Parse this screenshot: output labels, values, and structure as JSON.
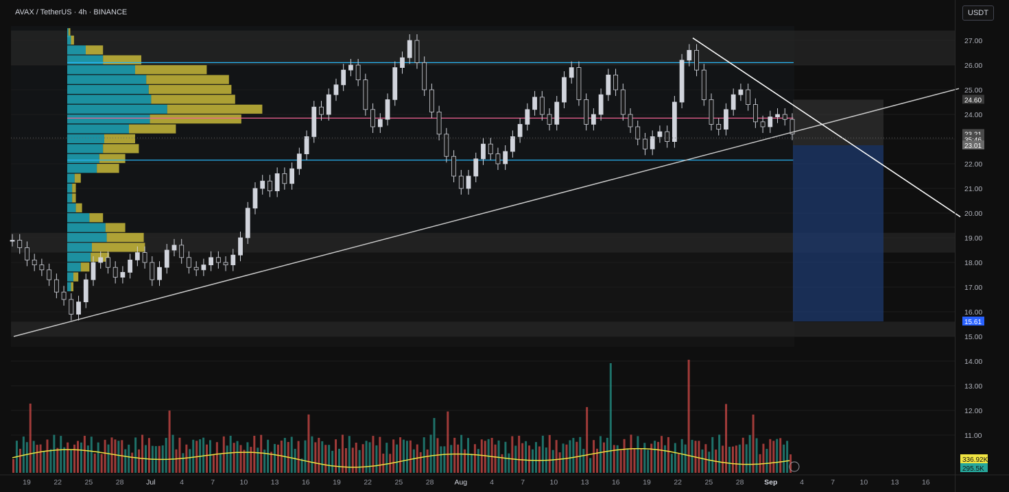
{
  "header": {
    "symbol_title": "AVAX / TetherUS · 4h · BINANCE",
    "currency_button": "USDT"
  },
  "chart_data": {
    "type": "candlestick",
    "symbol": "AVAX / TetherUS",
    "interval": "4h",
    "exchange": "BINANCE",
    "price_axis_ticks": [
      "27.00",
      "26.00",
      "25.00",
      "24.00",
      "23.00",
      "22.00",
      "21.00",
      "20.00",
      "19.00",
      "18.00",
      "17.00",
      "16.00",
      "15.00",
      "14.00",
      "13.00",
      "12.00",
      "11.00"
    ],
    "time_axis_ticks": [
      "19",
      "22",
      "25",
      "28",
      "Jul",
      "4",
      "7",
      "10",
      "13",
      "16",
      "19",
      "22",
      "25",
      "28",
      "Aug",
      "4",
      "7",
      "10",
      "13",
      "16",
      "19",
      "22",
      "25",
      "28",
      "Sep",
      "4",
      "7",
      "10",
      "13",
      "16"
    ],
    "price_labels": [
      {
        "text": "24.60",
        "price": 24.6,
        "color": "#3a3a3a"
      },
      {
        "text": "23.21",
        "price": 23.21,
        "color": "#4a4a4a"
      },
      {
        "text": "35:46",
        "price": 22.98,
        "color": "#4a4a4a"
      },
      {
        "text": "23.01",
        "price": 22.75,
        "color": "#6a6a6a"
      },
      {
        "text": "15.61",
        "price": 15.61,
        "color": "#2962ff"
      }
    ],
    "volume_labels": [
      {
        "text": "336.92K",
        "color": "#f0e442"
      },
      {
        "text": "295.5K",
        "color": "#26a69a"
      }
    ],
    "horizontal_levels": [
      {
        "price": 26.1,
        "color": "#29b6f6"
      },
      {
        "price": 23.85,
        "color": "#f06292"
      },
      {
        "price": 22.15,
        "color": "#29b6f6"
      }
    ],
    "zones": [
      {
        "from": 26.0,
        "to": 27.4
      },
      {
        "from": 18.4,
        "to": 19.2
      },
      {
        "from": 15.0,
        "to": 15.6
      }
    ],
    "close_series": [
      18.9,
      18.6,
      18.1,
      17.9,
      17.7,
      17.3,
      16.8,
      16.5,
      15.9,
      16.4,
      17.3,
      18.0,
      18.2,
      17.8,
      17.4,
      17.6,
      18.1,
      18.4,
      18.0,
      17.3,
      17.8,
      18.5,
      18.7,
      18.2,
      17.8,
      17.7,
      17.9,
      18.2,
      18.0,
      17.9,
      18.3,
      19.0,
      20.2,
      21.0,
      21.3,
      20.9,
      21.6,
      21.2,
      21.8,
      22.4,
      23.1,
      24.3,
      24.0,
      24.8,
      25.2,
      25.8,
      26.0,
      25.4,
      24.2,
      23.5,
      23.8,
      24.6,
      25.9,
      26.3,
      27.0,
      26.1,
      25.0,
      24.1,
      23.2,
      22.3,
      21.5,
      21.0,
      21.5,
      22.2,
      22.8,
      22.4,
      22.0,
      22.5,
      23.1,
      23.6,
      24.2,
      24.7,
      24.0,
      23.6,
      24.5,
      25.5,
      25.9,
      24.6,
      23.6,
      24.0,
      24.8,
      25.6,
      25.0,
      24.0,
      23.5,
      23.0,
      22.6,
      23.1,
      23.3,
      22.9,
      24.5,
      26.2,
      26.6,
      25.8,
      24.6,
      23.6,
      23.4,
      24.2,
      24.8,
      25.0,
      24.4,
      23.7,
      23.5,
      23.9,
      24.0,
      23.8,
      23.21
    ],
    "volume_profile": [
      {
        "price": 27.3,
        "up": 2,
        "down": 3
      },
      {
        "price": 27.0,
        "up": 6,
        "down": 5
      },
      {
        "price": 26.6,
        "up": 30,
        "down": 28
      },
      {
        "price": 26.2,
        "up": 58,
        "down": 62
      },
      {
        "price": 25.8,
        "up": 110,
        "down": 116
      },
      {
        "price": 25.4,
        "up": 128,
        "down": 134
      },
      {
        "price": 25.0,
        "up": 132,
        "down": 134
      },
      {
        "price": 24.6,
        "up": 136,
        "down": 136
      },
      {
        "price": 24.2,
        "up": 162,
        "down": 154
      },
      {
        "price": 23.8,
        "up": 134,
        "down": 148
      },
      {
        "price": 23.4,
        "up": 100,
        "down": 76
      },
      {
        "price": 23.0,
        "up": 60,
        "down": 50
      },
      {
        "price": 22.6,
        "up": 58,
        "down": 58
      },
      {
        "price": 22.2,
        "up": 52,
        "down": 42
      },
      {
        "price": 21.8,
        "up": 48,
        "down": 36
      },
      {
        "price": 21.4,
        "up": 12,
        "down": 10
      },
      {
        "price": 21.0,
        "up": 8,
        "down": 6
      },
      {
        "price": 20.6,
        "up": 8,
        "down": 6
      },
      {
        "price": 20.2,
        "up": 14,
        "down": 10
      },
      {
        "price": 19.8,
        "up": 36,
        "down": 22
      },
      {
        "price": 19.4,
        "up": 62,
        "down": 32
      },
      {
        "price": 19.0,
        "up": 64,
        "down": 60
      },
      {
        "price": 18.6,
        "up": 40,
        "down": 86
      },
      {
        "price": 18.2,
        "up": 38,
        "down": 30
      },
      {
        "price": 17.8,
        "up": 22,
        "down": 14
      },
      {
        "price": 17.4,
        "up": 10,
        "down": 8
      },
      {
        "price": 17.0,
        "up": 6,
        "down": 4
      }
    ]
  },
  "colors": {
    "up": "#d1d4dc",
    "down": "#d1d4dc",
    "vol_up": "#26a69a",
    "vol_down": "#ef5350",
    "ma": "#f0e442",
    "profile_up": "#1fa6b8",
    "profile_down": "#c8b83a",
    "short_box": "#1e3a6e"
  }
}
